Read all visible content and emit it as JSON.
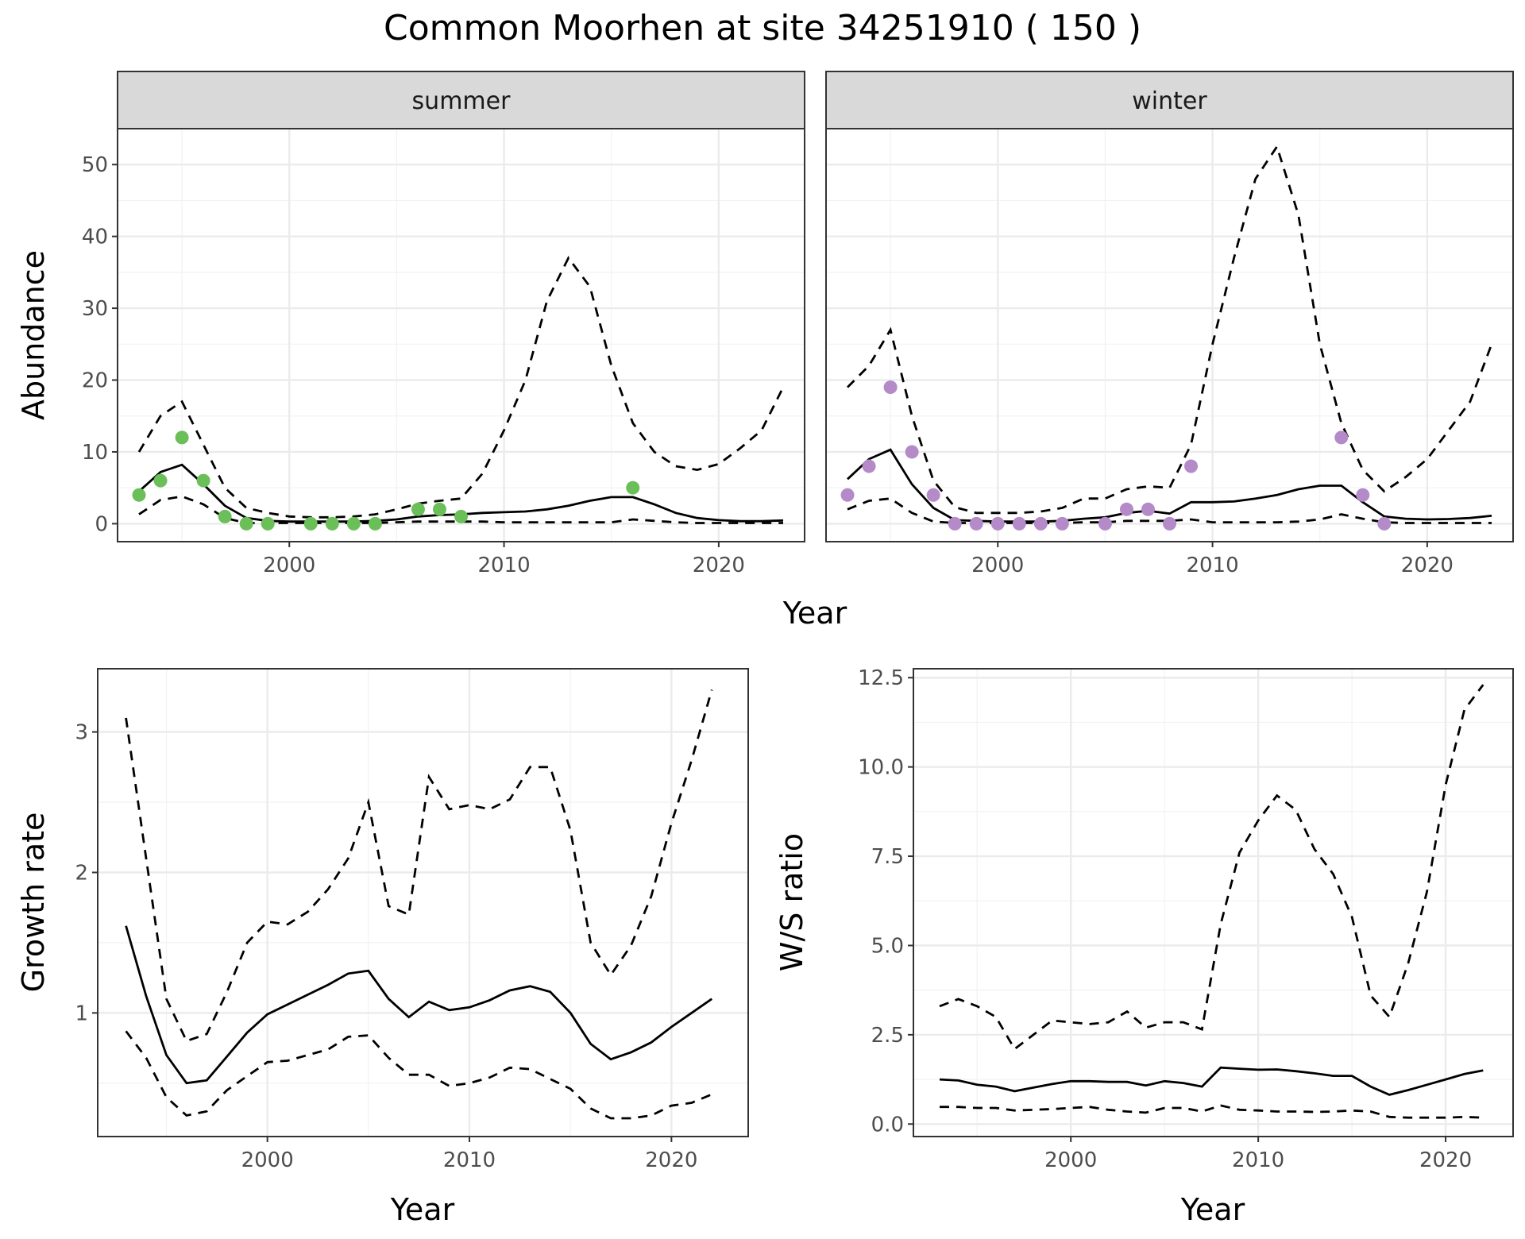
{
  "figure": {
    "title": "Common Moorhen at site 34251910 ( 150 )"
  },
  "colors": {
    "summer_points": "#6abf59",
    "winter_points": "#b48ac9",
    "line": "#000000",
    "strip_bg": "#d9d9d9",
    "grid_major": "#ebebeb",
    "grid_minor": "#f2f2f2"
  },
  "chart_data": [
    {
      "id": "abundance",
      "type": "line",
      "facets": [
        "summer",
        "winter"
      ],
      "xlabel": "Year",
      "ylabel": "Abundance",
      "xlim": [
        1992,
        2024
      ],
      "ylim": [
        -2.5,
        55
      ],
      "xticks": [
        2000,
        2010,
        2020
      ],
      "yticks": [
        0,
        10,
        20,
        30,
        40,
        50
      ],
      "x": [
        1993,
        1994,
        1995,
        1996,
        1997,
        1998,
        1999,
        2000,
        2001,
        2002,
        2003,
        2004,
        2005,
        2006,
        2007,
        2008,
        2009,
        2010,
        2011,
        2012,
        2013,
        2014,
        2015,
        2016,
        2017,
        2018,
        2019,
        2020,
        2021,
        2022,
        2023
      ],
      "panels": [
        {
          "name": "summer",
          "estimate": [
            4.5,
            7.2,
            8.2,
            5.5,
            2.5,
            0.8,
            0.4,
            0.3,
            0.3,
            0.3,
            0.3,
            0.4,
            0.6,
            1.0,
            1.2,
            1.3,
            1.5,
            1.6,
            1.7,
            2.0,
            2.5,
            3.2,
            3.7,
            3.7,
            2.7,
            1.5,
            0.8,
            0.5,
            0.35,
            0.35,
            0.45
          ],
          "upper": [
            10,
            15,
            17,
            11,
            5,
            2.2,
            1.5,
            1.0,
            0.9,
            0.9,
            1.0,
            1.3,
            2.0,
            2.8,
            3.2,
            3.5,
            7,
            13,
            20,
            31,
            37,
            33,
            22,
            14,
            10,
            8,
            7.5,
            8.3,
            10.5,
            13,
            19
          ],
          "lower": [
            1.3,
            3.3,
            3.8,
            2.7,
            0.8,
            0.1,
            0.1,
            0.1,
            0.1,
            0.1,
            0.1,
            0.1,
            0.2,
            0.3,
            0.3,
            0.3,
            0.3,
            0.2,
            0.2,
            0.2,
            0.2,
            0.2,
            0.2,
            0.6,
            0.4,
            0.2,
            0.1,
            0.1,
            0.1,
            0.1,
            0.1
          ],
          "observed": {
            "x": [
              1993,
              1994,
              1995,
              1996,
              1997,
              1998,
              1999,
              2001,
              2002,
              2003,
              2004,
              2006,
              2007,
              2008,
              2016
            ],
            "y": [
              4,
              6,
              12,
              6,
              1,
              0,
              0,
              0,
              0,
              0,
              0,
              2,
              2,
              1,
              5
            ]
          }
        },
        {
          "name": "winter",
          "estimate": [
            6.2,
            9.0,
            10.3,
            5.5,
            2.2,
            0.5,
            0.4,
            0.3,
            0.3,
            0.3,
            0.4,
            0.7,
            0.9,
            1.5,
            1.8,
            1.4,
            3.0,
            3.0,
            3.1,
            3.5,
            4.0,
            4.8,
            5.3,
            5.3,
            3.0,
            1.0,
            0.7,
            0.6,
            0.65,
            0.8,
            1.1
          ],
          "upper": [
            19,
            22,
            27,
            15,
            6,
            2.3,
            1.5,
            1.5,
            1.5,
            1.7,
            2.2,
            3.5,
            3.5,
            4.8,
            5.2,
            5.0,
            11,
            25,
            37,
            48,
            52.5,
            43,
            25,
            14,
            7.5,
            4.5,
            6.5,
            9,
            13,
            17,
            25
          ],
          "lower": [
            2,
            3.2,
            3.5,
            1.5,
            0.3,
            0.1,
            0.1,
            0.1,
            0.1,
            0.1,
            0.1,
            0.2,
            0.2,
            0.4,
            0.4,
            0.4,
            0.6,
            0.2,
            0.2,
            0.2,
            0.2,
            0.3,
            0.6,
            1.3,
            0.7,
            0.2,
            0.1,
            0.1,
            0.1,
            0.1,
            0.1
          ],
          "observed": {
            "x": [
              1993,
              1994,
              1995,
              1996,
              1997,
              1998,
              1999,
              2000,
              2001,
              2002,
              2003,
              2005,
              2006,
              2007,
              2008,
              2009,
              2016,
              2017,
              2018
            ],
            "y": [
              4,
              8,
              19,
              10,
              4,
              0,
              0,
              0,
              0,
              0,
              0,
              0,
              2,
              2,
              0,
              8,
              12,
              4,
              0
            ]
          }
        }
      ]
    },
    {
      "id": "growth",
      "type": "line",
      "xlabel": "Year",
      "ylabel": "Growth rate",
      "xlim": [
        1991.6,
        2023.8
      ],
      "ylim": [
        0.12,
        3.45
      ],
      "xticks": [
        2000,
        2010,
        2020
      ],
      "yticks": [
        1,
        2,
        3
      ],
      "x": [
        1993,
        1994,
        1995,
        1996,
        1997,
        1998,
        1999,
        2000,
        2001,
        2002,
        2003,
        2004,
        2005,
        2006,
        2007,
        2008,
        2009,
        2010,
        2011,
        2012,
        2013,
        2014,
        2015,
        2016,
        2017,
        2018,
        2019,
        2020,
        2021,
        2022
      ],
      "estimate": [
        1.62,
        1.12,
        0.7,
        0.5,
        0.52,
        0.69,
        0.86,
        0.99,
        1.06,
        1.13,
        1.2,
        1.28,
        1.3,
        1.1,
        0.97,
        1.08,
        1.02,
        1.04,
        1.09,
        1.16,
        1.19,
        1.15,
        1.0,
        0.78,
        0.67,
        0.72,
        0.79,
        0.9,
        1.0,
        1.1
      ],
      "upper": [
        3.1,
        2.1,
        1.1,
        0.8,
        0.85,
        1.15,
        1.5,
        1.65,
        1.63,
        1.72,
        1.88,
        2.1,
        2.5,
        1.76,
        1.7,
        2.68,
        2.45,
        2.48,
        2.45,
        2.52,
        2.75,
        2.75,
        2.3,
        1.5,
        1.27,
        1.48,
        1.83,
        2.35,
        2.8,
        3.3
      ],
      "lower": [
        0.87,
        0.68,
        0.4,
        0.27,
        0.3,
        0.45,
        0.55,
        0.65,
        0.66,
        0.7,
        0.74,
        0.83,
        0.84,
        0.68,
        0.56,
        0.56,
        0.48,
        0.5,
        0.54,
        0.61,
        0.6,
        0.53,
        0.46,
        0.32,
        0.25,
        0.25,
        0.27,
        0.34,
        0.36,
        0.42
      ]
    },
    {
      "id": "ws_ratio",
      "type": "line",
      "xlabel": "Year",
      "ylabel": "W/S ratio",
      "xlim": [
        1991.6,
        2023.6
      ],
      "ylim": [
        -0.35,
        12.75
      ],
      "xticks": [
        2000,
        2010,
        2020
      ],
      "yticks": [
        0.0,
        2.5,
        5.0,
        7.5,
        10.0,
        12.5
      ],
      "ytick_labels": [
        "0.0",
        "2.5",
        "5.0",
        "7.5",
        "10.0",
        "12.5"
      ],
      "x": [
        1993,
        1994,
        1995,
        1996,
        1997,
        1998,
        1999,
        2000,
        2001,
        2002,
        2003,
        2004,
        2005,
        2006,
        2007,
        2008,
        2009,
        2010,
        2011,
        2012,
        2013,
        2014,
        2015,
        2016,
        2017,
        2018,
        2019,
        2020,
        2021,
        2022
      ],
      "estimate": [
        1.25,
        1.22,
        1.1,
        1.05,
        0.92,
        1.02,
        1.12,
        1.2,
        1.2,
        1.18,
        1.18,
        1.08,
        1.2,
        1.15,
        1.05,
        1.58,
        1.55,
        1.52,
        1.53,
        1.48,
        1.42,
        1.35,
        1.35,
        1.05,
        0.82,
        0.95,
        1.1,
        1.25,
        1.4,
        1.5
      ],
      "upper": [
        3.3,
        3.5,
        3.3,
        3.0,
        2.1,
        2.5,
        2.9,
        2.85,
        2.8,
        2.85,
        3.15,
        2.7,
        2.85,
        2.85,
        2.65,
        5.6,
        7.6,
        8.5,
        9.2,
        8.8,
        7.7,
        7.0,
        5.8,
        3.6,
        3.0,
        4.5,
        6.5,
        9.5,
        11.6,
        12.3
      ],
      "lower": [
        0.48,
        0.48,
        0.45,
        0.45,
        0.38,
        0.4,
        0.42,
        0.45,
        0.48,
        0.4,
        0.35,
        0.32,
        0.45,
        0.45,
        0.35,
        0.52,
        0.4,
        0.38,
        0.35,
        0.35,
        0.34,
        0.35,
        0.38,
        0.35,
        0.2,
        0.18,
        0.18,
        0.18,
        0.2,
        0.18
      ]
    }
  ]
}
